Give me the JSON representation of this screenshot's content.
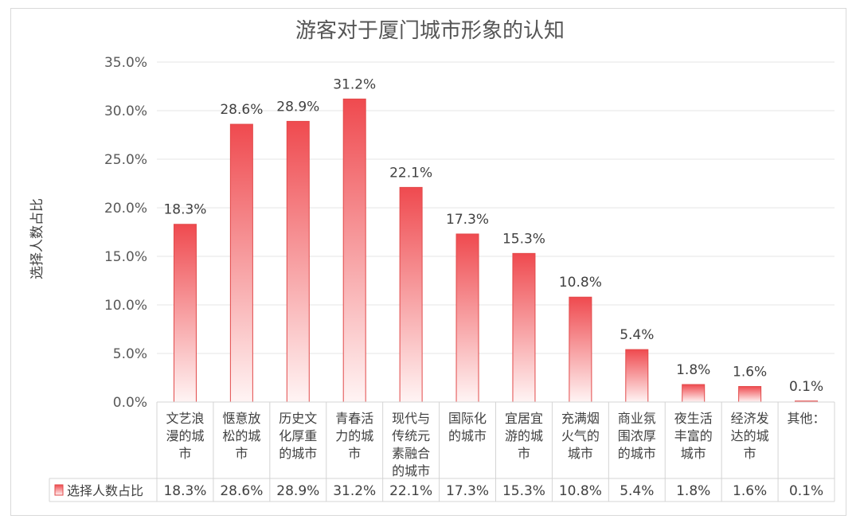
{
  "chart_data": {
    "type": "bar",
    "title": "游客对于厦门城市形象的认知",
    "ylabel": "选择人数占比",
    "ylim": [
      0,
      35
    ],
    "ytick_step": 5,
    "ytick_labels": [
      "0.0%",
      "5.0%",
      "10.0%",
      "15.0%",
      "20.0%",
      "25.0%",
      "30.0%",
      "35.0%"
    ],
    "grid": true,
    "categories": [
      [
        "文艺浪",
        "漫的城",
        "市"
      ],
      [
        "惬意放",
        "松的城",
        "市"
      ],
      [
        "历史文",
        "化厚重",
        "的城市"
      ],
      [
        "青春活",
        "力的城",
        "市"
      ],
      [
        "现代与",
        "传统元",
        "素融合",
        "的城市"
      ],
      [
        "国际化",
        "的城市"
      ],
      [
        "宜居宜",
        "游的城",
        "市"
      ],
      [
        "充满烟",
        "火气的",
        "城市"
      ],
      [
        "商业氛",
        "围浓厚",
        "的城市"
      ],
      [
        "夜生活",
        "丰富的",
        "城市"
      ],
      [
        "经济发",
        "达的城",
        "市"
      ],
      [
        "其他："
      ]
    ],
    "series": [
      {
        "name": "选择人数占比",
        "values": [
          18.3,
          28.6,
          28.9,
          31.2,
          22.1,
          17.3,
          15.3,
          10.8,
          5.4,
          1.8,
          1.6,
          0.1
        ],
        "labels": [
          "18.3%",
          "28.6%",
          "28.9%",
          "31.2%",
          "22.1%",
          "17.3%",
          "15.3%",
          "10.8%",
          "5.4%",
          "1.8%",
          "1.6%",
          "0.1%"
        ]
      }
    ],
    "data_table": true,
    "colors": {
      "bar_top": "#ef4a4f",
      "bar_bottom": "#fff4f4",
      "bar_edge": "#e24a4a"
    }
  }
}
